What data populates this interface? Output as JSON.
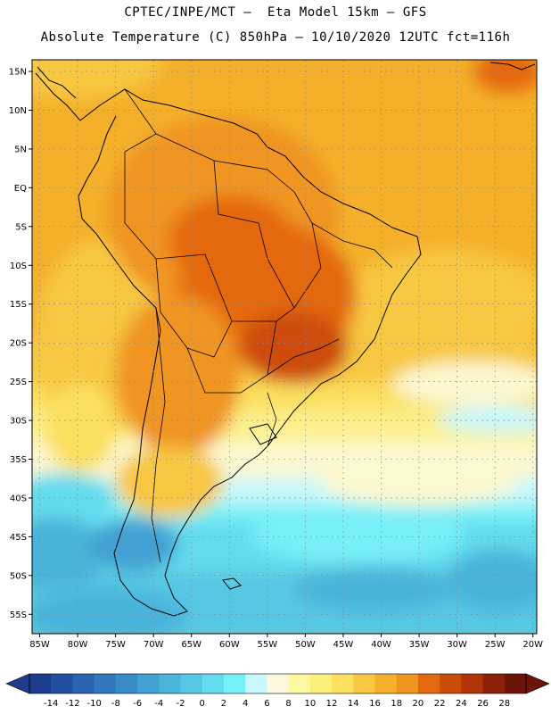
{
  "header": {
    "line1": "CPTEC/INPE/MCT –  Eta Model 15km – GFS",
    "line2": "Absolute Temperature (C) 850hPa – 10/10/2020 12UTC fct=116h"
  },
  "map": {
    "lat_labels": [
      "15N",
      "10N",
      "5N",
      "EQ",
      "5S",
      "10S",
      "15S",
      "20S",
      "25S",
      "30S",
      "35S",
      "40S",
      "45S",
      "50S",
      "55S"
    ],
    "lon_labels": [
      "85W",
      "80W",
      "75W",
      "70W",
      "65W",
      "60W",
      "55W",
      "50W",
      "45W",
      "40W",
      "35W",
      "30W",
      "25W",
      "20W"
    ],
    "lat_range": [
      -57.5,
      16.5
    ],
    "lon_range": [
      -86,
      -19.5
    ],
    "grid_dashed": true
  },
  "colorbar": {
    "ticks": [
      "-14",
      "-12",
      "-10",
      "-8",
      "-6",
      "-4",
      "-2",
      "0",
      "2",
      "4",
      "6",
      "8",
      "10",
      "12",
      "14",
      "16",
      "18",
      "20",
      "22",
      "24",
      "26",
      "28"
    ],
    "colors": [
      "#1e3c8c",
      "#22509e",
      "#2a64ae",
      "#3278bc",
      "#3a8cc8",
      "#42a0d2",
      "#4ab4da",
      "#56c8e4",
      "#64dcee",
      "#78f0f8",
      "#c8f8fc",
      "#fcf8e0",
      "#fcf8a0",
      "#fcf07c",
      "#fce060",
      "#f8c842",
      "#f4b02c",
      "#f09420",
      "#e46810",
      "#cc4c0c",
      "#b03408",
      "#8c2008",
      "#6c1408"
    ]
  }
}
